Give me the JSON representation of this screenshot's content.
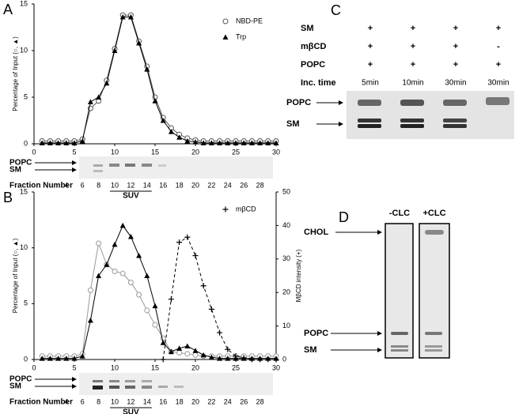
{
  "chart_data": [
    {
      "type": "line",
      "panel": "A",
      "ylabel": "Percentage of Input (○, ▲)",
      "x": [
        1,
        2,
        3,
        4,
        5,
        6,
        7,
        8,
        9,
        10,
        11,
        12,
        13,
        14,
        15,
        16,
        17,
        18,
        19,
        20,
        21,
        22,
        23,
        24,
        25,
        26,
        27,
        28,
        29,
        30
      ],
      "xlim": [
        0,
        30
      ],
      "xticks": [
        0,
        5,
        10,
        15,
        20,
        25,
        30
      ],
      "ylim": [
        0,
        15
      ],
      "yticks": [
        0,
        5,
        10,
        15
      ],
      "legend": "upper right",
      "series": [
        {
          "name": "NBD-PE",
          "color": "#555555",
          "marker": "circle",
          "values": [
            0.3,
            0.3,
            0.3,
            0.3,
            0.3,
            0.5,
            3.8,
            4.6,
            6.8,
            10.2,
            13.8,
            13.8,
            11,
            8.3,
            5,
            2.8,
            1.7,
            1,
            0.6,
            0.4,
            0.3,
            0.3,
            0.3,
            0.3,
            0.3,
            0.3,
            0.3,
            0.3,
            0.3,
            0.3
          ]
        },
        {
          "name": "Trp",
          "color": "#000000",
          "marker": "triangle",
          "values": [
            0.1,
            0.1,
            0.1,
            0.1,
            0.1,
            0.3,
            4.5,
            5,
            6.5,
            10,
            13.6,
            13.6,
            10.8,
            8,
            4.6,
            2.5,
            1.3,
            0.7,
            0.3,
            0.2,
            0.1,
            0.1,
            0.1,
            0.1,
            0.1,
            0.1,
            0.1,
            0.1,
            0.1,
            0.1
          ]
        }
      ],
      "gel": {
        "labels": [
          "POPC",
          "SM"
        ],
        "lane_title": "Fraction Number",
        "lanes": [
          4,
          6,
          8,
          10,
          12,
          14,
          16,
          18,
          20,
          22,
          24,
          26,
          28
        ],
        "bracket": "SUV"
      }
    },
    {
      "type": "line",
      "panel": "B",
      "ylabel": "Percentage of Input (○, ▲)",
      "y2label": "MβCD intensity (+)",
      "x": [
        1,
        2,
        3,
        4,
        5,
        6,
        7,
        8,
        9,
        10,
        11,
        12,
        13,
        14,
        15,
        16,
        17,
        18,
        19,
        20,
        21,
        22,
        23,
        24,
        25,
        26,
        27,
        28,
        29,
        30
      ],
      "xlim": [
        0,
        30
      ],
      "xticks": [
        0,
        5,
        10,
        15,
        20,
        25,
        30
      ],
      "ylim": [
        0,
        15
      ],
      "yticks": [
        0,
        5,
        10,
        15
      ],
      "y2lim": [
        0,
        50
      ],
      "y2ticks": [
        0,
        10,
        20,
        30,
        40,
        50
      ],
      "legend": "upper right",
      "series": [
        {
          "color": "#999999",
          "marker": "circle",
          "values": [
            0.3,
            0.3,
            0.3,
            0.3,
            0.3,
            0.5,
            6.2,
            10.4,
            8.5,
            7.9,
            7.7,
            6.9,
            5.8,
            4.4,
            3.1,
            1.9,
            0.7,
            0.6,
            0.5,
            0.4,
            0.3,
            0.3,
            0.3,
            0.3,
            0.3,
            0.3,
            0.3,
            0.3,
            0.3,
            0.3
          ]
        },
        {
          "color": "#000000",
          "marker": "triangle",
          "values": [
            0.1,
            0.1,
            0.1,
            0.1,
            0.1,
            0.3,
            3.5,
            7.5,
            8.5,
            10.3,
            12,
            11,
            9.3,
            7.5,
            4.8,
            1.5,
            0.7,
            1,
            1.2,
            0.8,
            0.4,
            0.2,
            0.1,
            0.1,
            0.1,
            0.1,
            0.1,
            0.1,
            0.1,
            0.1
          ]
        },
        {
          "name": "mβCD",
          "color": "#000000",
          "marker": "plus",
          "dash": "dashed",
          "axis": "y2",
          "x": [
            16,
            17,
            18,
            19,
            20,
            21,
            22,
            23,
            24,
            25,
            26,
            27,
            28,
            29,
            30
          ],
          "values": [
            0,
            18,
            35,
            36.5,
            31,
            22,
            15,
            8,
            3,
            1,
            0.5,
            0,
            0,
            0,
            0
          ]
        }
      ],
      "gel": {
        "labels": [
          "POPC",
          "SM"
        ],
        "lane_title": "Fraction Number",
        "lanes": [
          4,
          6,
          8,
          10,
          12,
          14,
          16,
          18,
          20,
          22,
          24,
          26,
          28
        ],
        "bracket": "SUV"
      }
    }
  ],
  "panel_c": {
    "letter": "C",
    "rows": [
      {
        "label": "SM",
        "marks": [
          "+",
          "+",
          "+",
          "+"
        ]
      },
      {
        "label": "mβCD",
        "marks": [
          "+",
          "+",
          "+",
          "-"
        ]
      },
      {
        "label": "POPC",
        "marks": [
          "+",
          "+",
          "+",
          "+"
        ]
      },
      {
        "label": "Inc. time",
        "marks": [
          "5min",
          "10min",
          "30min",
          "30min"
        ]
      }
    ],
    "bands": [
      "POPC",
      "SM"
    ]
  },
  "panel_d": {
    "letter": "D",
    "lanes": [
      "-CLC",
      "+CLC"
    ],
    "bands": [
      "CHOL",
      "POPC",
      "SM"
    ]
  }
}
